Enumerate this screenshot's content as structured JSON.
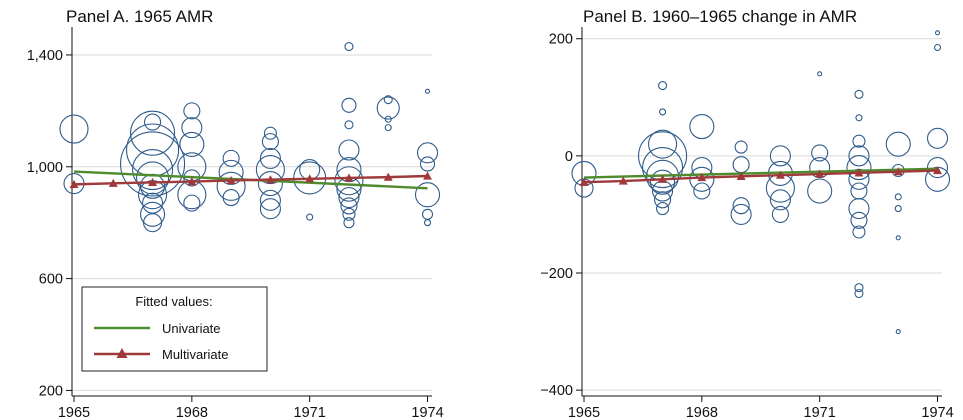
{
  "colors": {
    "bubble": "#2f5b8a",
    "univariate": "#4f8a2c",
    "multivariate": "#a03a3a"
  },
  "legend": {
    "title": "Fitted values:",
    "items": [
      "Univariate",
      "Multivariate"
    ]
  },
  "chart_data": [
    {
      "type": "scatter",
      "title": "Panel A. 1965 AMR",
      "xlabel": "",
      "ylabel": "",
      "xlim": [
        1965,
        1974
      ],
      "ylim": [
        180,
        1500
      ],
      "xticks": [
        1965,
        1968,
        1971,
        1974
      ],
      "xtick_labels": [
        "1965",
        "1968",
        "1971",
        "1974"
      ],
      "yticks": [
        200,
        600,
        1000,
        1400
      ],
      "ytick_labels": [
        "200",
        "600",
        "1,000",
        "1,400"
      ],
      "grid": true,
      "legend_position": "bottom-left",
      "points": [
        {
          "x": 1965,
          "y": 1135,
          "r": 14
        },
        {
          "x": 1965,
          "y": 940,
          "r": 10
        },
        {
          "x": 1967,
          "y": 1120,
          "r": 22
        },
        {
          "x": 1967,
          "y": 1060,
          "r": 26
        },
        {
          "x": 1967,
          "y": 1010,
          "r": 32
        },
        {
          "x": 1967,
          "y": 990,
          "r": 20
        },
        {
          "x": 1967,
          "y": 960,
          "r": 16
        },
        {
          "x": 1967,
          "y": 930,
          "r": 12
        },
        {
          "x": 1967,
          "y": 900,
          "r": 14
        },
        {
          "x": 1967,
          "y": 870,
          "r": 10
        },
        {
          "x": 1967,
          "y": 830,
          "r": 12
        },
        {
          "x": 1967,
          "y": 800,
          "r": 9
        },
        {
          "x": 1967,
          "y": 1160,
          "r": 8
        },
        {
          "x": 1968,
          "y": 1200,
          "r": 8
        },
        {
          "x": 1968,
          "y": 1140,
          "r": 10
        },
        {
          "x": 1968,
          "y": 1080,
          "r": 12
        },
        {
          "x": 1968,
          "y": 1000,
          "r": 14
        },
        {
          "x": 1968,
          "y": 960,
          "r": 8
        },
        {
          "x": 1968,
          "y": 900,
          "r": 14
        },
        {
          "x": 1968,
          "y": 870,
          "r": 8
        },
        {
          "x": 1969,
          "y": 1030,
          "r": 8
        },
        {
          "x": 1969,
          "y": 980,
          "r": 12
        },
        {
          "x": 1969,
          "y": 930,
          "r": 14
        },
        {
          "x": 1969,
          "y": 890,
          "r": 8
        },
        {
          "x": 1970,
          "y": 1120,
          "r": 6
        },
        {
          "x": 1970,
          "y": 1090,
          "r": 8
        },
        {
          "x": 1970,
          "y": 1030,
          "r": 10
        },
        {
          "x": 1970,
          "y": 990,
          "r": 14
        },
        {
          "x": 1970,
          "y": 940,
          "r": 12
        },
        {
          "x": 1970,
          "y": 880,
          "r": 10
        },
        {
          "x": 1970,
          "y": 850,
          "r": 10
        },
        {
          "x": 1971,
          "y": 990,
          "r": 10
        },
        {
          "x": 1971,
          "y": 960,
          "r": 16
        },
        {
          "x": 1971,
          "y": 820,
          "r": 3
        },
        {
          "x": 1972,
          "y": 1430,
          "r": 4
        },
        {
          "x": 1972,
          "y": 1220,
          "r": 7
        },
        {
          "x": 1972,
          "y": 1150,
          "r": 4
        },
        {
          "x": 1972,
          "y": 1060,
          "r": 10
        },
        {
          "x": 1972,
          "y": 990,
          "r": 12
        },
        {
          "x": 1972,
          "y": 950,
          "r": 14
        },
        {
          "x": 1972,
          "y": 920,
          "r": 12
        },
        {
          "x": 1972,
          "y": 890,
          "r": 10
        },
        {
          "x": 1972,
          "y": 860,
          "r": 8
        },
        {
          "x": 1972,
          "y": 830,
          "r": 6
        },
        {
          "x": 1972,
          "y": 800,
          "r": 5
        },
        {
          "x": 1973,
          "y": 1240,
          "r": 4
        },
        {
          "x": 1973,
          "y": 1210,
          "r": 11
        },
        {
          "x": 1973,
          "y": 1170,
          "r": 3
        },
        {
          "x": 1973,
          "y": 1140,
          "r": 3
        },
        {
          "x": 1974,
          "y": 1270,
          "r": 2
        },
        {
          "x": 1974,
          "y": 1050,
          "r": 10
        },
        {
          "x": 1974,
          "y": 1010,
          "r": 7
        },
        {
          "x": 1974,
          "y": 900,
          "r": 12
        },
        {
          "x": 1974,
          "y": 830,
          "r": 5
        },
        {
          "x": 1974,
          "y": 800,
          "r": 3
        }
      ],
      "series": [
        {
          "name": "Univariate",
          "x": [
            1965,
            1974
          ],
          "values": [
            983,
            923
          ]
        },
        {
          "name": "Multivariate",
          "x": [
            1965,
            1966,
            1967,
            1968,
            1969,
            1970,
            1971,
            1972,
            1973,
            1974
          ],
          "values": [
            937,
            941,
            944,
            947,
            951,
            954,
            957,
            960,
            963,
            967
          ]
        }
      ]
    },
    {
      "type": "scatter",
      "title": "Panel B. 1960–1965 change in AMR",
      "xlabel": "",
      "ylabel": "",
      "xlim": [
        1965,
        1974
      ],
      "ylim": [
        -410,
        220
      ],
      "xticks": [
        1965,
        1968,
        1971,
        1974
      ],
      "xtick_labels": [
        "1965",
        "1968",
        "1971",
        "1974"
      ],
      "yticks": [
        -400,
        -200,
        0,
        200
      ],
      "ytick_labels": [
        "−400",
        "−200",
        "0",
        "200"
      ],
      "grid": true,
      "points": [
        {
          "x": 1965,
          "y": -30,
          "r": 12
        },
        {
          "x": 1965,
          "y": -55,
          "r": 9
        },
        {
          "x": 1967,
          "y": 120,
          "r": 4
        },
        {
          "x": 1967,
          "y": 75,
          "r": 3
        },
        {
          "x": 1967,
          "y": 20,
          "r": 14
        },
        {
          "x": 1967,
          "y": 0,
          "r": 24
        },
        {
          "x": 1967,
          "y": -20,
          "r": 20
        },
        {
          "x": 1967,
          "y": -35,
          "r": 16
        },
        {
          "x": 1967,
          "y": -45,
          "r": 12
        },
        {
          "x": 1967,
          "y": -60,
          "r": 10
        },
        {
          "x": 1967,
          "y": -75,
          "r": 8
        },
        {
          "x": 1967,
          "y": -90,
          "r": 6
        },
        {
          "x": 1968,
          "y": 50,
          "r": 12
        },
        {
          "x": 1968,
          "y": -20,
          "r": 10
        },
        {
          "x": 1968,
          "y": -40,
          "r": 12
        },
        {
          "x": 1968,
          "y": -60,
          "r": 8
        },
        {
          "x": 1969,
          "y": 15,
          "r": 6
        },
        {
          "x": 1969,
          "y": -15,
          "r": 8
        },
        {
          "x": 1969,
          "y": -85,
          "r": 8
        },
        {
          "x": 1969,
          "y": -100,
          "r": 10
        },
        {
          "x": 1970,
          "y": 0,
          "r": 10
        },
        {
          "x": 1970,
          "y": -30,
          "r": 12
        },
        {
          "x": 1970,
          "y": -55,
          "r": 14
        },
        {
          "x": 1970,
          "y": -75,
          "r": 10
        },
        {
          "x": 1970,
          "y": -100,
          "r": 8
        },
        {
          "x": 1971,
          "y": 140,
          "r": 2
        },
        {
          "x": 1971,
          "y": 5,
          "r": 8
        },
        {
          "x": 1971,
          "y": -20,
          "r": 10
        },
        {
          "x": 1971,
          "y": -60,
          "r": 12
        },
        {
          "x": 1972,
          "y": 105,
          "r": 4
        },
        {
          "x": 1972,
          "y": 65,
          "r": 3
        },
        {
          "x": 1972,
          "y": 25,
          "r": 6
        },
        {
          "x": 1972,
          "y": 0,
          "r": 10
        },
        {
          "x": 1972,
          "y": -20,
          "r": 12
        },
        {
          "x": 1972,
          "y": -40,
          "r": 10
        },
        {
          "x": 1972,
          "y": -60,
          "r": 8
        },
        {
          "x": 1972,
          "y": -90,
          "r": 10
        },
        {
          "x": 1972,
          "y": -110,
          "r": 8
        },
        {
          "x": 1972,
          "y": -130,
          "r": 6
        },
        {
          "x": 1972,
          "y": -225,
          "r": 4
        },
        {
          "x": 1972,
          "y": -235,
          "r": 4
        },
        {
          "x": 1973,
          "y": 20,
          "r": 12
        },
        {
          "x": 1973,
          "y": -25,
          "r": 6
        },
        {
          "x": 1973,
          "y": -70,
          "r": 3
        },
        {
          "x": 1973,
          "y": -90,
          "r": 3
        },
        {
          "x": 1973,
          "y": -140,
          "r": 2
        },
        {
          "x": 1973,
          "y": -300,
          "r": 2
        },
        {
          "x": 1974,
          "y": 210,
          "r": 2
        },
        {
          "x": 1974,
          "y": 185,
          "r": 3
        },
        {
          "x": 1974,
          "y": 30,
          "r": 10
        },
        {
          "x": 1974,
          "y": -20,
          "r": 10
        },
        {
          "x": 1974,
          "y": -40,
          "r": 12
        }
      ],
      "series": [
        {
          "name": "Univariate",
          "x": [
            1965,
            1974
          ],
          "values": [
            -37,
            -22
          ]
        },
        {
          "name": "Multivariate",
          "x": [
            1965,
            1966,
            1967,
            1968,
            1969,
            1970,
            1971,
            1972,
            1973,
            1974
          ],
          "values": [
            -45,
            -43,
            -40,
            -37,
            -35,
            -33,
            -31,
            -29,
            -27,
            -25
          ]
        }
      ]
    }
  ]
}
